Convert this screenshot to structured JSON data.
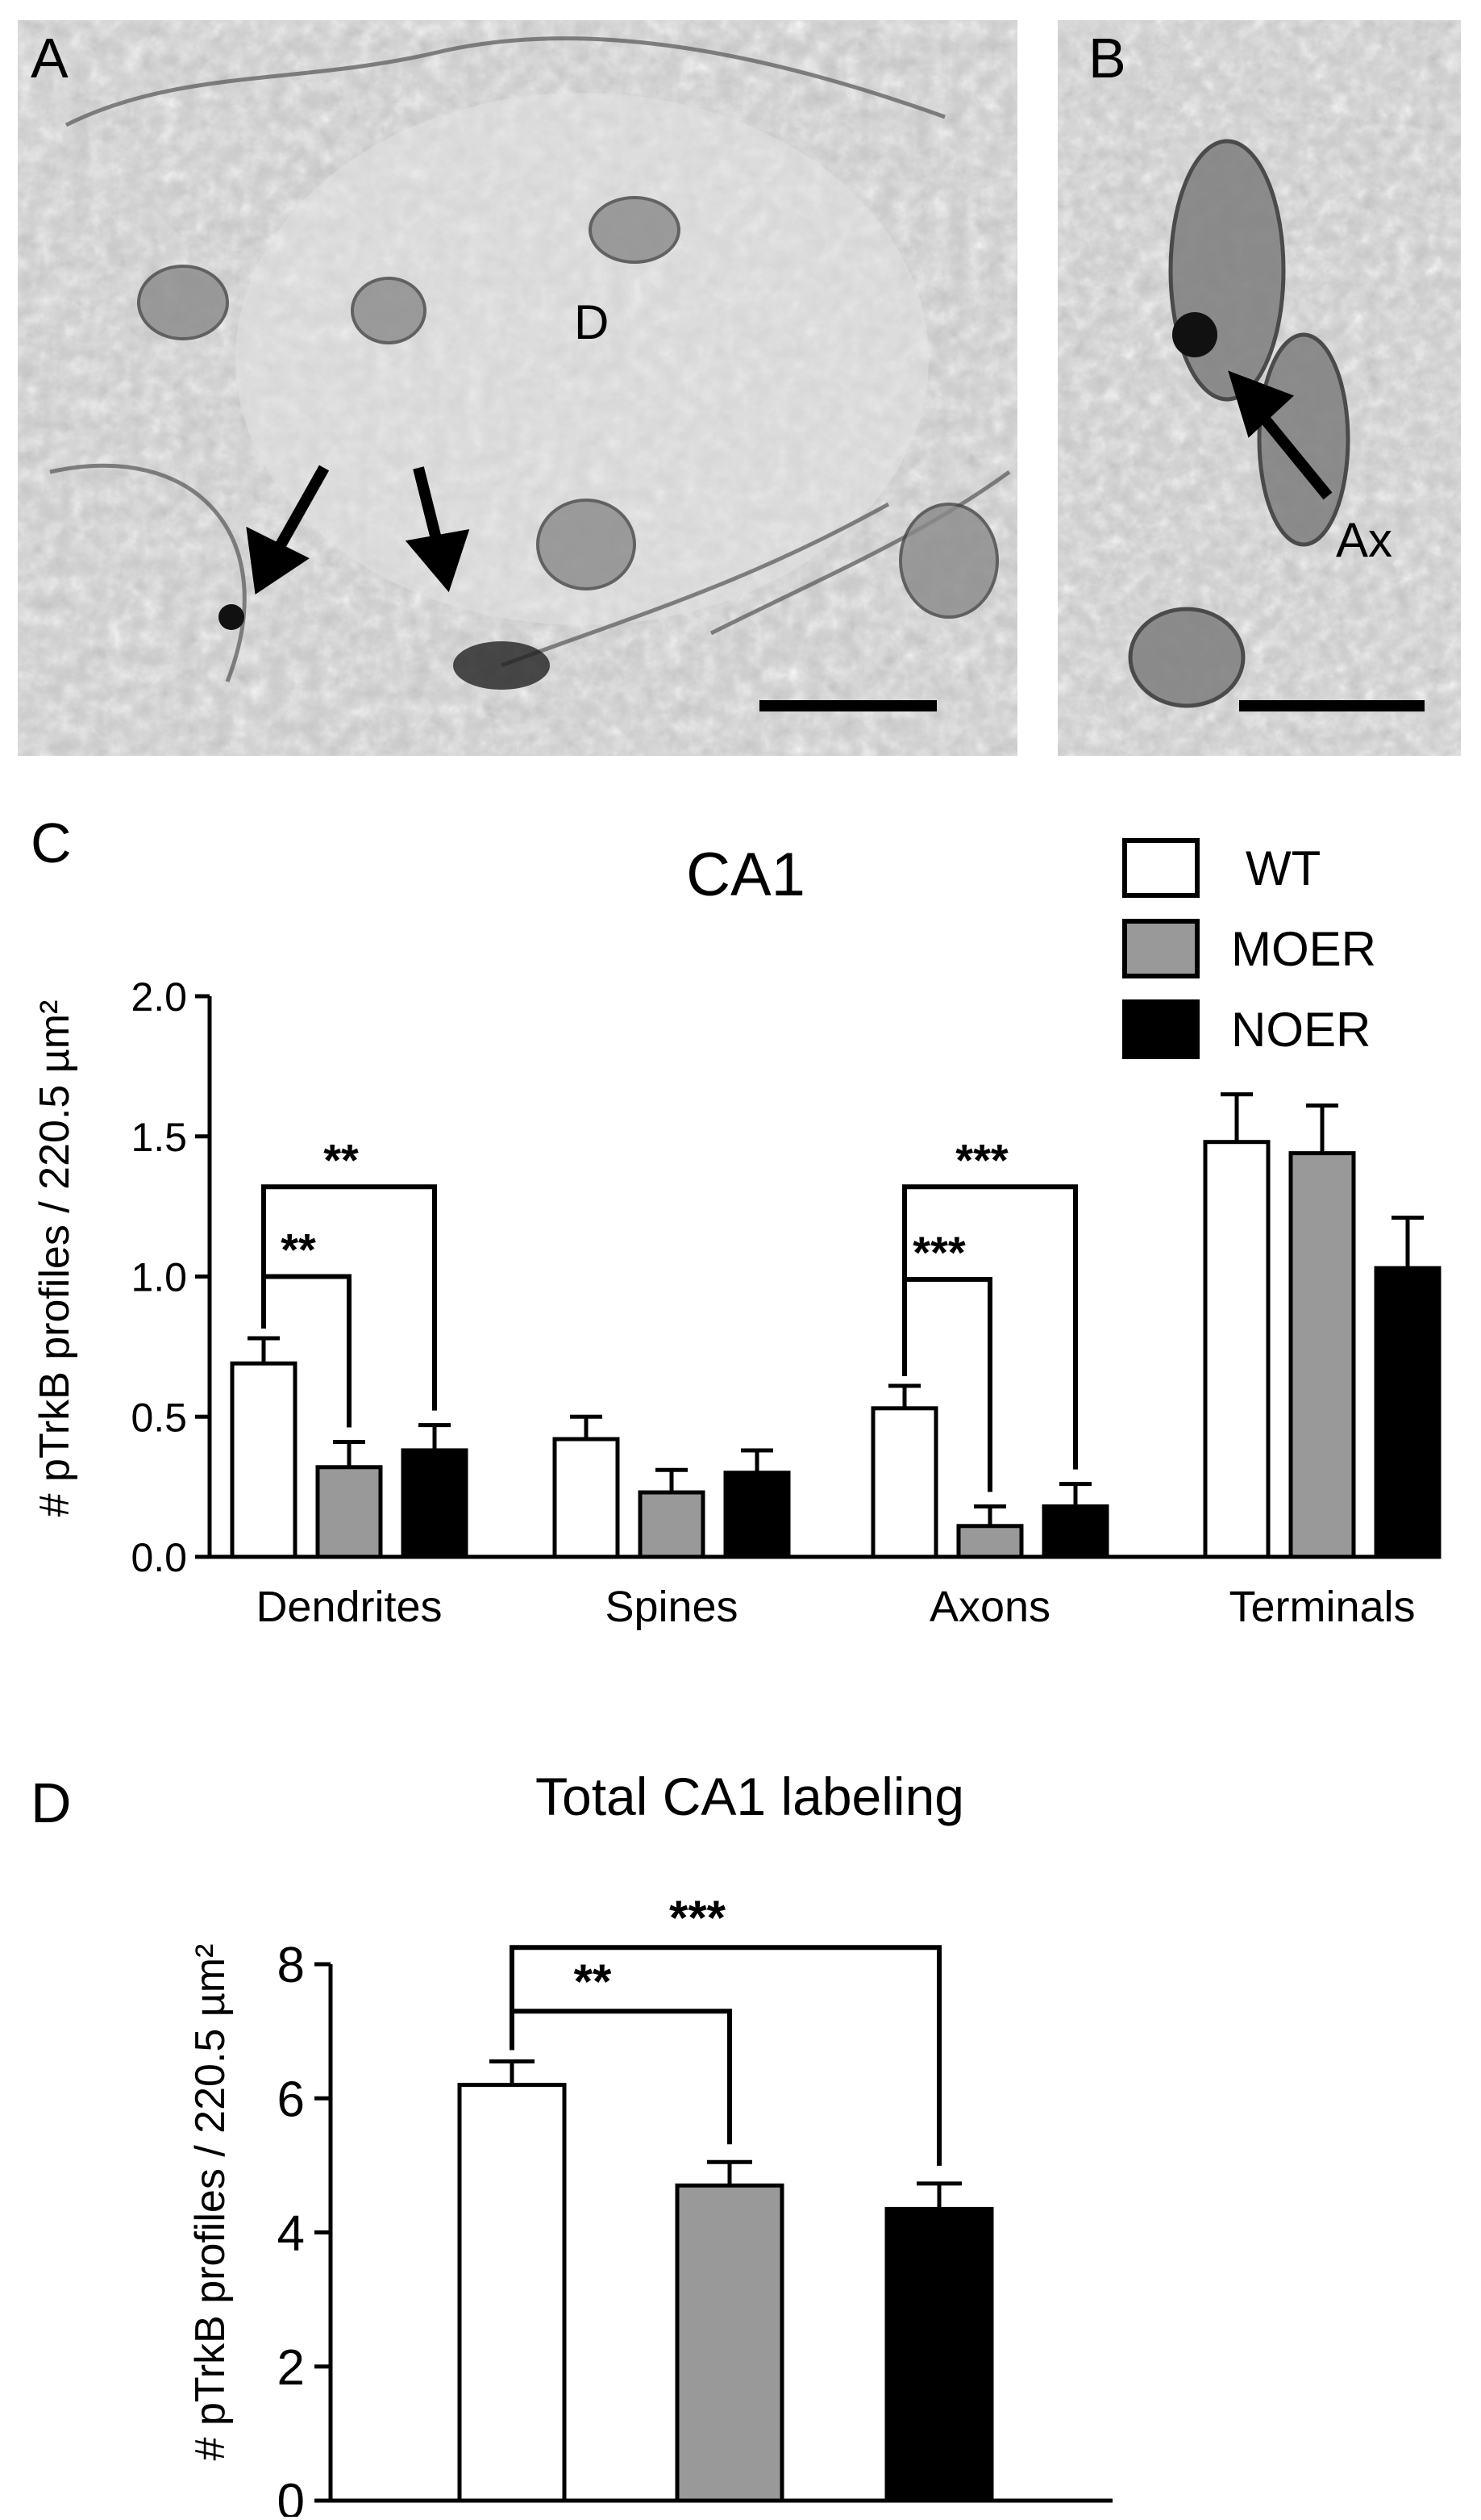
{
  "panels": {
    "a": {
      "letter": "A",
      "structure_label": "D"
    },
    "b": {
      "letter": "B",
      "structure_label": "Ax"
    },
    "c": {
      "letter": "C"
    },
    "d": {
      "letter": "D"
    }
  },
  "colors": {
    "wt": "#ffffff",
    "moer": "#999999",
    "noer": "#000000"
  },
  "chart_data": [
    {
      "type": "bar",
      "title": "CA1",
      "ylabel": "# pTrkB profiles / 220.5 µm²",
      "ylim": [
        0,
        2.0
      ],
      "yticks": [
        "0.0",
        "0.5",
        "1.0",
        "1.5",
        "2.0"
      ],
      "categories": [
        "Dendrites",
        "Spines",
        "Axons",
        "Terminals"
      ],
      "legend": {
        "placement": "top-right",
        "entries": [
          "WT",
          "MOER",
          "NOER"
        ]
      },
      "series": [
        {
          "name": "WT",
          "values": [
            0.69,
            0.42,
            0.53,
            1.48
          ],
          "errors": [
            0.09,
            0.08,
            0.08,
            0.17
          ]
        },
        {
          "name": "MOER",
          "values": [
            0.32,
            0.23,
            0.11,
            1.44
          ],
          "errors": [
            0.09,
            0.08,
            0.07,
            0.17
          ]
        },
        {
          "name": "NOER",
          "values": [
            0.38,
            0.3,
            0.18,
            1.03
          ],
          "errors": [
            0.09,
            0.08,
            0.08,
            0.18
          ]
        }
      ],
      "significance": [
        {
          "category": "Dendrites",
          "from": "WT",
          "to": "MOER",
          "label": "**"
        },
        {
          "category": "Dendrites",
          "from": "WT",
          "to": "NOER",
          "label": "**"
        },
        {
          "category": "Axons",
          "from": "WT",
          "to": "MOER",
          "label": "***"
        },
        {
          "category": "Axons",
          "from": "WT",
          "to": "NOER",
          "label": "***"
        }
      ]
    },
    {
      "type": "bar",
      "title": "Total CA1 labeling",
      "ylabel": "# pTrkB profiles / 220.5 µm²",
      "ylim": [
        0,
        8
      ],
      "yticks": [
        "0",
        "2",
        "4",
        "6",
        "8"
      ],
      "categories": [
        "WT",
        "MOER",
        "NOER"
      ],
      "values": [
        6.2,
        4.7,
        4.35
      ],
      "errors": [
        0.35,
        0.35,
        0.38
      ],
      "significance": [
        {
          "from": "WT",
          "to": "MOER",
          "label": "**"
        },
        {
          "from": "WT",
          "to": "NOER",
          "label": "***"
        }
      ]
    }
  ]
}
